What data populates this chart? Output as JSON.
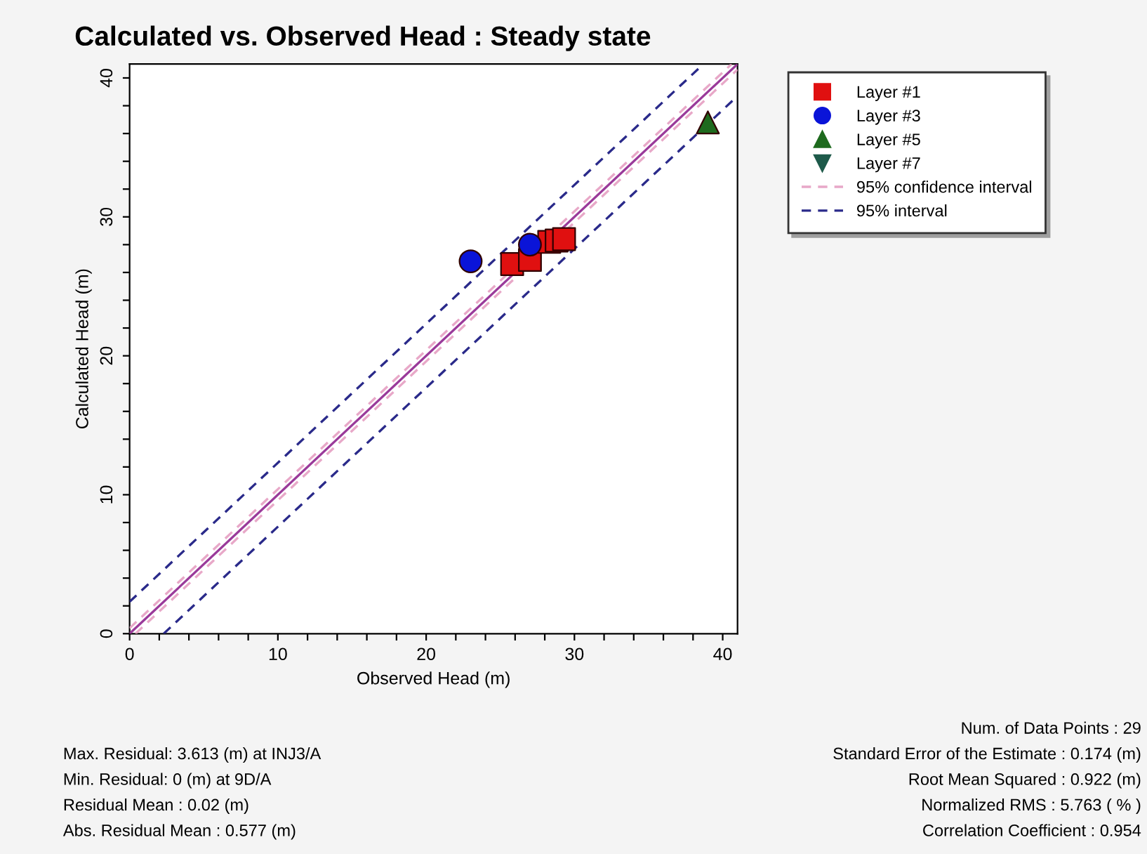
{
  "chart_data": {
    "type": "scatter",
    "title": "Calculated vs. Observed Head : Steady state",
    "xlabel": "Observed Head (m)",
    "ylabel": "Calculated Head (m)",
    "xlim": [
      0,
      41
    ],
    "ylim": [
      0,
      41
    ],
    "xticks": [
      0,
      {
        "value": 2,
        "label": null
      },
      {
        "value": 4,
        "label": null
      },
      {
        "value": 6,
        "label": null
      },
      {
        "value": 8,
        "label": null
      },
      10,
      {
        "value": 12,
        "label": null
      },
      {
        "value": 14,
        "label": null
      },
      {
        "value": 16,
        "label": null
      },
      {
        "value": 18,
        "label": null
      },
      20,
      {
        "value": 22,
        "label": null
      },
      {
        "value": 24,
        "label": null
      },
      {
        "value": 26,
        "label": null
      },
      {
        "value": 28,
        "label": null
      },
      30,
      {
        "value": 32,
        "label": null
      },
      {
        "value": 34,
        "label": null
      },
      {
        "value": 36,
        "label": null
      },
      {
        "value": 38,
        "label": null
      },
      40
    ],
    "yticks": [
      0,
      {
        "value": 2,
        "label": null
      },
      {
        "value": 4,
        "label": null
      },
      {
        "value": 6,
        "label": null
      },
      {
        "value": 8,
        "label": null
      },
      10,
      {
        "value": 12,
        "label": null
      },
      {
        "value": 14,
        "label": null
      },
      {
        "value": 16,
        "label": null
      },
      {
        "value": 18,
        "label": null
      },
      20,
      {
        "value": 22,
        "label": null
      },
      {
        "value": 24,
        "label": null
      },
      {
        "value": 26,
        "label": null
      },
      {
        "value": 28,
        "label": null
      },
      30,
      {
        "value": 32,
        "label": null
      },
      {
        "value": 34,
        "label": null
      },
      {
        "value": 36,
        "label": null
      },
      {
        "value": 38,
        "label": null
      },
      40
    ],
    "grid": false,
    "legend": "top right",
    "series": [
      {
        "name": "Layer #1",
        "color": "#e01010",
        "marker": "square",
        "x": [
          25.8,
          27.0,
          28.3,
          28.8,
          29.3
        ],
        "values": [
          26.6,
          26.9,
          28.2,
          28.3,
          28.4
        ]
      },
      {
        "name": "Layer #3",
        "color": "#0a14d8",
        "marker": "circle",
        "x": [
          23.0,
          27.0
        ],
        "values": [
          26.8,
          28.0
        ]
      },
      {
        "name": "Layer #5",
        "color": "#1e6a1e",
        "marker": "triangle",
        "x": [
          39.0
        ],
        "values": [
          36.8
        ]
      },
      {
        "name": "Layer #7",
        "color": "#1e5a4a",
        "marker": "triangle_down"
      },
      {
        "type": "line",
        "color": "#9a3a9a",
        "line_style": "solid",
        "x": [
          0,
          41
        ],
        "values": [
          0,
          41
        ]
      },
      {
        "type": "line",
        "name": "95% confidence interval",
        "color": "#e8a8c8",
        "line_style": "dashed",
        "x": [
          0,
          40.6
        ],
        "values": [
          0.4,
          41
        ]
      },
      {
        "type": "line",
        "color": "#e8a8c8",
        "line_style": "dashed",
        "x": [
          0.4,
          41
        ],
        "values": [
          0,
          40.6
        ]
      },
      {
        "type": "line",
        "name": "95% interval",
        "color": "#2a2a8a",
        "line_style": "dashed",
        "x": [
          0,
          38.7
        ],
        "values": [
          2.3,
          41
        ]
      },
      {
        "type": "line",
        "color": "#2a2a8a",
        "line_style": "dashed",
        "x": [
          2.3,
          41
        ],
        "values": [
          0,
          38.7
        ]
      }
    ],
    "annotations": [
      "Max. Residual: 3.613 (m) at INJ3/A",
      "Min. Residual: 0 (m) at 9D/A",
      "Residual Mean : 0.02 (m)",
      "Abs. Residual Mean : 0.577 (m)",
      "Num. of Data Points : 29",
      "Standard Error of the Estimate : 0.174 (m)",
      "Root Mean Squared : 0.922 (m)",
      "Normalized RMS : 5.763 ( % )",
      "Correlation Coefficient : 0.954"
    ]
  }
}
